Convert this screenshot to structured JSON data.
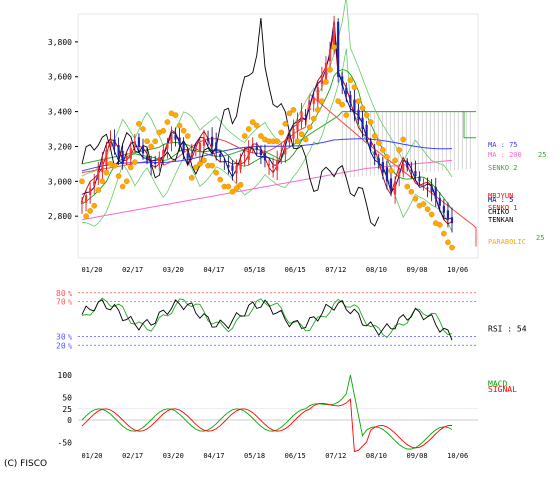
{
  "copyright": "(C) FISCO",
  "chart_data": [
    {
      "type": "line",
      "panel": "price",
      "ylim": [
        2560,
        3960
      ],
      "y_ticks": [
        2800,
        3000,
        3200,
        3400,
        3600,
        3800
      ],
      "y_tick_labels": [
        "2,800",
        "3,000",
        "3,200",
        "3,400",
        "3,600",
        "3,800"
      ],
      "x_ticks": [
        "01/20",
        "02/17",
        "03/20",
        "04/17",
        "05/18",
        "06/15",
        "07/12",
        "08/10",
        "09/08",
        "10/06"
      ],
      "candles_close": [
        2890,
        2920,
        2960,
        3000,
        3060,
        3120,
        3180,
        3240,
        3200,
        3150,
        3100,
        3140,
        3190,
        3230,
        3200,
        3160,
        3120,
        3080,
        3100,
        3140,
        3180,
        3220,
        3260,
        3240,
        3210,
        3170,
        3130,
        3160,
        3190,
        3220,
        3250,
        3230,
        3200,
        3170,
        3140,
        3110,
        3080,
        3060,
        3090,
        3120,
        3150,
        3180,
        3210,
        3180,
        3150,
        3120,
        3100,
        3090,
        3120,
        3160,
        3200,
        3250,
        3300,
        3350,
        3400,
        3380,
        3420,
        3480,
        3540,
        3600,
        3680,
        3760,
        3900,
        3600,
        3550,
        3500,
        3450,
        3400,
        3350,
        3300,
        3250,
        3200,
        3150,
        3100,
        3050,
        3000,
        2950,
        3000,
        3050,
        3100,
        3080,
        3060,
        3030,
        3000,
        2980,
        2960,
        2940,
        2900,
        2860,
        2820,
        2780,
        2760
      ],
      "legend_items": [
        {
          "label": "MA : 75",
          "color": "#4040ff"
        },
        {
          "label": "MA : 200",
          "color": "#ff66cc"
        },
        {
          "label": "25",
          "color": "#33aa33"
        },
        {
          "label": "SENKO 2",
          "color": "#33aa33"
        },
        {
          "label": "MA : 5",
          "color": "#000080"
        },
        {
          "label": "MBJYUN",
          "color": "#ff0000"
        },
        {
          "label": "SENKO 1",
          "color": "#ff0000"
        },
        {
          "label": "CHIKO",
          "color": "#000000"
        },
        {
          "label": "TENKAN",
          "color": "#000000"
        },
        {
          "label": "PARABOLIC",
          "color": "#ffa500"
        },
        {
          "label": "25",
          "color": "#33aa33"
        }
      ]
    },
    {
      "type": "line",
      "panel": "rsi",
      "ylim": [
        10,
        90
      ],
      "y_ticks": [
        20,
        30,
        70,
        80
      ],
      "y_tick_labels": [
        "20 %",
        "30 %",
        "70 %",
        "80 %"
      ],
      "series": [
        {
          "name": "RSI : 54",
          "color": "#000000"
        }
      ]
    },
    {
      "type": "line",
      "panel": "macd",
      "ylim": [
        -80,
        120
      ],
      "y_ticks": [
        -50,
        0,
        25,
        50,
        100
      ],
      "y_tick_labels": [
        "-50",
        "0",
        "25",
        "50",
        "100"
      ],
      "x_ticks": [
        "01/20",
        "02/17",
        "03/20",
        "04/17",
        "05/18",
        "06/15",
        "07/12",
        "08/10",
        "09/08",
        "10/06"
      ],
      "series": [
        {
          "name": "MACD",
          "color": "#00aa00"
        },
        {
          "name": "SIGNAL",
          "color": "#ff0000"
        }
      ]
    }
  ]
}
